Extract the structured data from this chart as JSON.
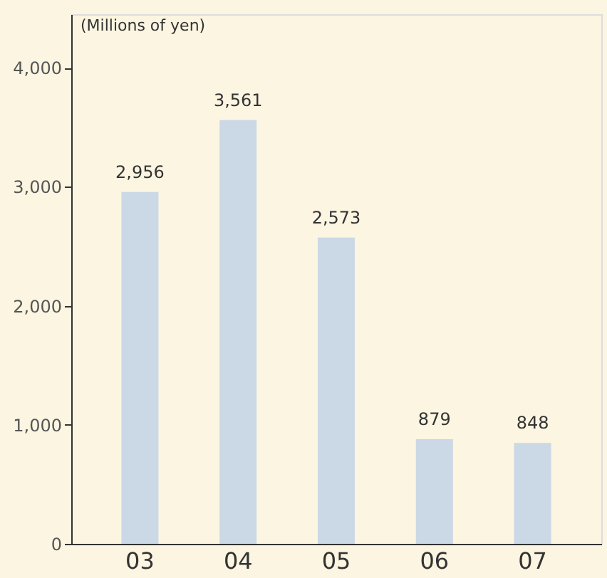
{
  "chart_data": {
    "type": "bar",
    "ylabel": "(Millions of yen)",
    "categories": [
      "03",
      "04",
      "05",
      "06",
      "07"
    ],
    "values": [
      2956,
      3561,
      2573,
      879,
      848
    ],
    "color": "#cbd8e6",
    "ylim": [
      0,
      4450
    ],
    "yticks": [
      {
        "value": 0,
        "label": "0"
      },
      {
        "value": 1000,
        "label": "1,000"
      },
      {
        "value": 2000,
        "label": "2,000"
      },
      {
        "value": 3000,
        "label": "3,000"
      },
      {
        "value": 4000,
        "label": "4,000"
      }
    ],
    "grid": false,
    "value_labels": [
      "2,956",
      "3,561",
      "2,573",
      "879",
      "848"
    ]
  }
}
